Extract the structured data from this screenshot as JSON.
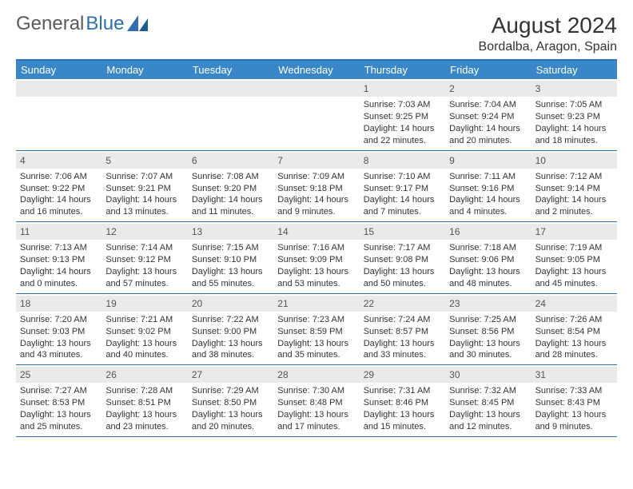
{
  "brand": {
    "word1": "General",
    "word2": "Blue"
  },
  "title": "August 2024",
  "location": "Bordalba, Aragon, Spain",
  "colors": {
    "header_bg": "#3a87c8",
    "rule": "#2f6fad",
    "daynum_bg": "#eaeaea",
    "text": "#333333",
    "logo_gray": "#5a5a5a"
  },
  "day_labels": [
    "Sunday",
    "Monday",
    "Tuesday",
    "Wednesday",
    "Thursday",
    "Friday",
    "Saturday"
  ],
  "blank_leading": 4,
  "days": [
    {
      "n": "1",
      "sun": "Sunrise: 7:03 AM",
      "set": "Sunset: 9:25 PM",
      "day": "Daylight: 14 hours and 22 minutes."
    },
    {
      "n": "2",
      "sun": "Sunrise: 7:04 AM",
      "set": "Sunset: 9:24 PM",
      "day": "Daylight: 14 hours and 20 minutes."
    },
    {
      "n": "3",
      "sun": "Sunrise: 7:05 AM",
      "set": "Sunset: 9:23 PM",
      "day": "Daylight: 14 hours and 18 minutes."
    },
    {
      "n": "4",
      "sun": "Sunrise: 7:06 AM",
      "set": "Sunset: 9:22 PM",
      "day": "Daylight: 14 hours and 16 minutes."
    },
    {
      "n": "5",
      "sun": "Sunrise: 7:07 AM",
      "set": "Sunset: 9:21 PM",
      "day": "Daylight: 14 hours and 13 minutes."
    },
    {
      "n": "6",
      "sun": "Sunrise: 7:08 AM",
      "set": "Sunset: 9:20 PM",
      "day": "Daylight: 14 hours and 11 minutes."
    },
    {
      "n": "7",
      "sun": "Sunrise: 7:09 AM",
      "set": "Sunset: 9:18 PM",
      "day": "Daylight: 14 hours and 9 minutes."
    },
    {
      "n": "8",
      "sun": "Sunrise: 7:10 AM",
      "set": "Sunset: 9:17 PM",
      "day": "Daylight: 14 hours and 7 minutes."
    },
    {
      "n": "9",
      "sun": "Sunrise: 7:11 AM",
      "set": "Sunset: 9:16 PM",
      "day": "Daylight: 14 hours and 4 minutes."
    },
    {
      "n": "10",
      "sun": "Sunrise: 7:12 AM",
      "set": "Sunset: 9:14 PM",
      "day": "Daylight: 14 hours and 2 minutes."
    },
    {
      "n": "11",
      "sun": "Sunrise: 7:13 AM",
      "set": "Sunset: 9:13 PM",
      "day": "Daylight: 14 hours and 0 minutes."
    },
    {
      "n": "12",
      "sun": "Sunrise: 7:14 AM",
      "set": "Sunset: 9:12 PM",
      "day": "Daylight: 13 hours and 57 minutes."
    },
    {
      "n": "13",
      "sun": "Sunrise: 7:15 AM",
      "set": "Sunset: 9:10 PM",
      "day": "Daylight: 13 hours and 55 minutes."
    },
    {
      "n": "14",
      "sun": "Sunrise: 7:16 AM",
      "set": "Sunset: 9:09 PM",
      "day": "Daylight: 13 hours and 53 minutes."
    },
    {
      "n": "15",
      "sun": "Sunrise: 7:17 AM",
      "set": "Sunset: 9:08 PM",
      "day": "Daylight: 13 hours and 50 minutes."
    },
    {
      "n": "16",
      "sun": "Sunrise: 7:18 AM",
      "set": "Sunset: 9:06 PM",
      "day": "Daylight: 13 hours and 48 minutes."
    },
    {
      "n": "17",
      "sun": "Sunrise: 7:19 AM",
      "set": "Sunset: 9:05 PM",
      "day": "Daylight: 13 hours and 45 minutes."
    },
    {
      "n": "18",
      "sun": "Sunrise: 7:20 AM",
      "set": "Sunset: 9:03 PM",
      "day": "Daylight: 13 hours and 43 minutes."
    },
    {
      "n": "19",
      "sun": "Sunrise: 7:21 AM",
      "set": "Sunset: 9:02 PM",
      "day": "Daylight: 13 hours and 40 minutes."
    },
    {
      "n": "20",
      "sun": "Sunrise: 7:22 AM",
      "set": "Sunset: 9:00 PM",
      "day": "Daylight: 13 hours and 38 minutes."
    },
    {
      "n": "21",
      "sun": "Sunrise: 7:23 AM",
      "set": "Sunset: 8:59 PM",
      "day": "Daylight: 13 hours and 35 minutes."
    },
    {
      "n": "22",
      "sun": "Sunrise: 7:24 AM",
      "set": "Sunset: 8:57 PM",
      "day": "Daylight: 13 hours and 33 minutes."
    },
    {
      "n": "23",
      "sun": "Sunrise: 7:25 AM",
      "set": "Sunset: 8:56 PM",
      "day": "Daylight: 13 hours and 30 minutes."
    },
    {
      "n": "24",
      "sun": "Sunrise: 7:26 AM",
      "set": "Sunset: 8:54 PM",
      "day": "Daylight: 13 hours and 28 minutes."
    },
    {
      "n": "25",
      "sun": "Sunrise: 7:27 AM",
      "set": "Sunset: 8:53 PM",
      "day": "Daylight: 13 hours and 25 minutes."
    },
    {
      "n": "26",
      "sun": "Sunrise: 7:28 AM",
      "set": "Sunset: 8:51 PM",
      "day": "Daylight: 13 hours and 23 minutes."
    },
    {
      "n": "27",
      "sun": "Sunrise: 7:29 AM",
      "set": "Sunset: 8:50 PM",
      "day": "Daylight: 13 hours and 20 minutes."
    },
    {
      "n": "28",
      "sun": "Sunrise: 7:30 AM",
      "set": "Sunset: 8:48 PM",
      "day": "Daylight: 13 hours and 17 minutes."
    },
    {
      "n": "29",
      "sun": "Sunrise: 7:31 AM",
      "set": "Sunset: 8:46 PM",
      "day": "Daylight: 13 hours and 15 minutes."
    },
    {
      "n": "30",
      "sun": "Sunrise: 7:32 AM",
      "set": "Sunset: 8:45 PM",
      "day": "Daylight: 13 hours and 12 minutes."
    },
    {
      "n": "31",
      "sun": "Sunrise: 7:33 AM",
      "set": "Sunset: 8:43 PM",
      "day": "Daylight: 13 hours and 9 minutes."
    }
  ]
}
